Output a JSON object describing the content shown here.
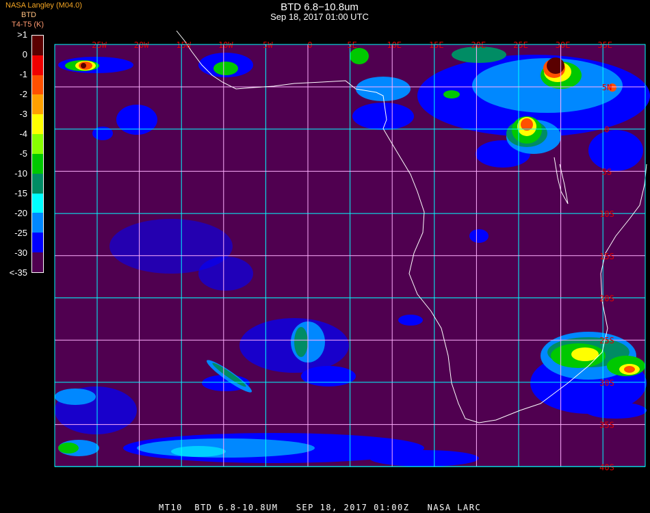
{
  "header": {
    "title": "BTD 6.8−10.8um",
    "datetime": "Sep 18, 2017 01:00 UTC"
  },
  "legend": {
    "producer": "NASA Langley (M04.0)",
    "product": "BTD",
    "units": "T4-T5 (K)",
    "steps": [
      {
        "label": ">1",
        "color": "#5a0000"
      },
      {
        "label": "0",
        "color": "#f00000"
      },
      {
        "label": "-1",
        "color": "#ff5000"
      },
      {
        "label": "-2",
        "color": "#ffa000"
      },
      {
        "label": "-3",
        "color": "#ffff00"
      },
      {
        "label": "-4",
        "color": "#88ff00"
      },
      {
        "label": "-5",
        "color": "#00c800"
      },
      {
        "label": "-10",
        "color": "#008c64"
      },
      {
        "label": "-15",
        "color": "#00ffff"
      },
      {
        "label": "-20",
        "color": "#0088ff"
      },
      {
        "label": "-25",
        "color": "#0000ff"
      },
      {
        "label": "-30",
        "color": "#500050"
      },
      {
        "label": "<-35",
        "color": null
      }
    ]
  },
  "map": {
    "background": "#500050",
    "grid_color": "#00ffff",
    "coast_color": "#ffffff",
    "label_color": "#e00000",
    "longitudes": [
      "25W",
      "20W",
      "15W",
      "10W",
      "5W",
      "0",
      "5E",
      "10E",
      "15E",
      "20E",
      "25E",
      "30E",
      "35E"
    ],
    "latitudes": [
      "5N",
      "0",
      "5S",
      "10S",
      "15S",
      "20S",
      "25S",
      "30S",
      "35S",
      "40S"
    ]
  },
  "footer": {
    "satellite": "MT10",
    "product": "BTD 6.8-10.8UM",
    "datetime": "SEP 18, 2017 01:00Z",
    "source": "NASA LARC"
  }
}
